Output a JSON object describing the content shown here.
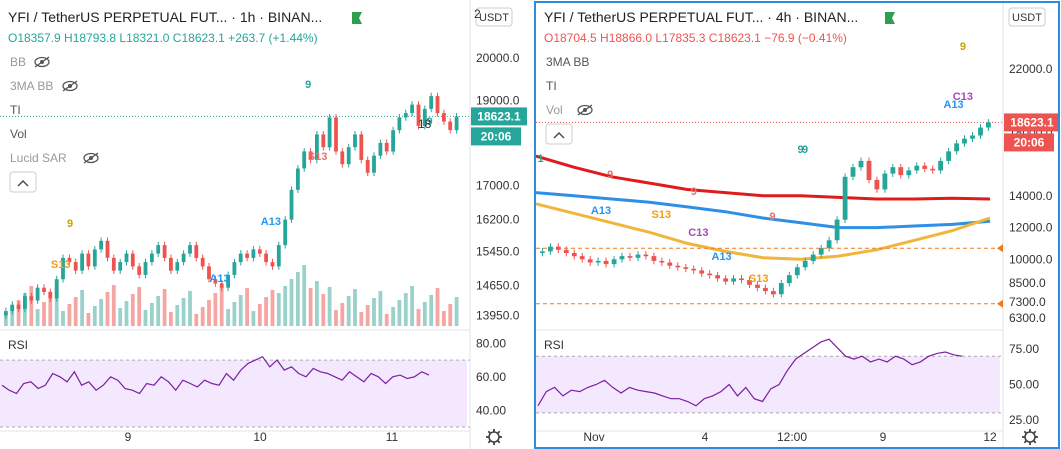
{
  "colors": {
    "up": "#26a69a",
    "down": "#ef5350",
    "upVol": "#9ad2cb",
    "downVol": "#f5a6a3",
    "accent": "#2a8de0",
    "rsiBand": "#f3e8fd",
    "rsiLine": "#7b1fa2"
  },
  "panels": [
    {
      "id": "left",
      "title": "YFI / TetherUS PERPETUAL FUT...",
      "interval": "1h",
      "exchange": "BINAN...",
      "ohlc": {
        "o": "O18357.9",
        "h": "H18793.8",
        "l": "L18321.0",
        "c": "C18623.1",
        "chg": "+263.7 (+1.44%)"
      },
      "ohlc_color": "#26a69a",
      "indicators": [
        {
          "label": "BB",
          "hidden": true
        },
        {
          "label": "3MA BB",
          "hidden": true
        },
        {
          "label": "TI",
          "hidden": false
        },
        {
          "label": "Vol",
          "hidden": false
        },
        {
          "label": "Lucid SAR",
          "hidden": true
        }
      ],
      "price_labels": [
        "20000.0",
        "19000.0",
        "17000.0",
        "16200.0",
        "15450.0",
        "14650.0",
        "13950.0"
      ],
      "partial_top_label": "2",
      "partial_label": "18",
      "current_price": "18623.1",
      "countdown": "20:06",
      "currency": "USDT",
      "rsi_label": "RSI",
      "rsi_ticks": [
        "80.00",
        "60.00",
        "40.00"
      ],
      "time_labels": [
        "9",
        "10",
        "11"
      ],
      "markers": [
        {
          "text": "9",
          "color": "#26a69a"
        },
        {
          "text": "9",
          "color": "#26a69a"
        },
        {
          "text": "9",
          "color": "#c8a400"
        },
        {
          "text": "S13",
          "color": "#f39c12"
        },
        {
          "text": "A13",
          "color": "#2196f3"
        },
        {
          "text": "A13",
          "color": "#2196f3"
        },
        {
          "text": "S13",
          "color": "#e57373"
        }
      ]
    },
    {
      "id": "right",
      "title": "YFI / TetherUS PERPETUAL FUT...",
      "interval": "4h",
      "exchange": "BINAN...",
      "ohlc": {
        "o": "O18704.5",
        "h": "H18866.0",
        "l": "L17835.3",
        "c": "C18623.1",
        "chg": "−76.9 (−0.41%)"
      },
      "ohlc_color": "#ef5350",
      "indicators": [
        {
          "label": "3MA BB",
          "hidden": false
        },
        {
          "label": "TI",
          "hidden": false
        },
        {
          "label": "Vol",
          "hidden": true
        }
      ],
      "price_labels": [
        "22000.0",
        "18000.0",
        "14000.0",
        "12000.0",
        "10000.0",
        "8500.0",
        "7300.0",
        "6300.0"
      ],
      "current_price": "18623.1",
      "countdown": "20:06",
      "currency": "USDT",
      "rsi_label": "RSI",
      "rsi_ticks": [
        "75.00",
        "50.00",
        "25.00"
      ],
      "time_labels": [
        "Nov",
        "4",
        "12:00",
        "9",
        "12"
      ],
      "markers": [
        {
          "text": "9",
          "color": "#c8a400"
        },
        {
          "text": "9",
          "color": "#26a69a"
        },
        {
          "text": "1",
          "color": "#26a69a"
        },
        {
          "text": "9",
          "color": "#e57373"
        },
        {
          "text": "A13",
          "color": "#2196f3"
        },
        {
          "text": "9",
          "color": "#e57373"
        },
        {
          "text": "S13",
          "color": "#f39c12"
        },
        {
          "text": "9",
          "color": "#e57373"
        },
        {
          "text": "C13",
          "color": "#ab47bc"
        },
        {
          "text": "A13",
          "color": "#2196f3"
        },
        {
          "text": "S13",
          "color": "#f39c12"
        },
        {
          "text": "9",
          "color": "#26a69a"
        },
        {
          "text": "C13",
          "color": "#ab47bc"
        },
        {
          "text": "A13",
          "color": "#2196f3"
        }
      ]
    }
  ],
  "chart_data": [
    {
      "type": "line",
      "panel": "left",
      "title": "YFI / TetherUS PERPETUAL FUT... 1h BINAN...",
      "close_approx": [
        14050,
        14200,
        14100,
        14400,
        14300,
        14600,
        14500,
        14350,
        14800,
        15300,
        15200,
        15000,
        15400,
        15100,
        15500,
        15700,
        15300,
        15000,
        15200,
        15400,
        15100,
        14900,
        15200,
        15400,
        15600,
        15300,
        15000,
        15200,
        15400,
        15600,
        15300,
        15100,
        14800,
        14700,
        14600,
        14900,
        15200,
        15400,
        15300,
        15500,
        15400,
        15200,
        15100,
        15600,
        16200,
        16900,
        17400,
        17800,
        17600,
        18200,
        17900,
        18600,
        17800,
        17500,
        17900,
        18200,
        17600,
        17300,
        17700,
        18000,
        17800,
        18300,
        18600,
        18700,
        18900,
        18400,
        18800,
        19100,
        18700,
        18500,
        18300,
        18623
      ],
      "ylim": [
        13700,
        20300
      ],
      "rsi_approx": [
        55,
        52,
        50,
        56,
        57,
        53,
        55,
        62,
        60,
        57,
        63,
        55,
        57,
        52,
        55,
        60,
        58,
        53,
        52,
        50,
        56,
        55,
        60,
        57,
        52,
        58,
        56,
        54,
        58,
        56,
        55,
        62,
        58,
        64,
        68,
        70,
        72,
        66,
        70,
        64,
        66,
        62,
        60,
        65,
        63,
        62,
        60,
        58,
        63,
        60,
        57,
        62,
        60,
        56,
        60,
        61,
        59,
        60,
        63,
        61
      ],
      "rsi_ylim": [
        30,
        85
      ]
    },
    {
      "type": "line",
      "panel": "right",
      "title": "YFI / TetherUS PERPETUAL FUT... 4h BINAN...",
      "close_approx": [
        10500,
        10800,
        10600,
        10400,
        10200,
        10000,
        9800,
        9900,
        9700,
        10000,
        10200,
        10100,
        10300,
        10200,
        9900,
        9800,
        9600,
        9500,
        9400,
        9300,
        9100,
        9000,
        8800,
        8600,
        8800,
        8700,
        8400,
        8200,
        8000,
        7800,
        8500,
        9000,
        9500,
        9900,
        10300,
        10700,
        11200,
        12500,
        15200,
        15800,
        16200,
        15000,
        14400,
        15400,
        15800,
        15300,
        15600,
        15900,
        15700,
        15600,
        16200,
        16800,
        17300,
        17600,
        17800,
        18300,
        18623
      ],
      "ylim": [
        5800,
        23500
      ],
      "series": [
        {
          "name": "red",
          "values_approx": [
            16500,
            15800,
            15200,
            14800,
            14400,
            14200,
            14000,
            14000,
            13900,
            13800,
            13800,
            13850,
            13800
          ]
        },
        {
          "name": "blue",
          "values_approx": [
            14200,
            14000,
            13800,
            13600,
            13300,
            13000,
            12600,
            12300,
            12000,
            12000,
            12100,
            12200,
            12400
          ]
        },
        {
          "name": "orange",
          "values_approx": [
            13500,
            12900,
            12300,
            11700,
            11000,
            10500,
            10100,
            10000,
            10200,
            10600,
            11200,
            11800,
            12600
          ]
        }
      ],
      "rsi_approx": [
        35,
        45,
        48,
        42,
        46,
        45,
        48,
        50,
        53,
        48,
        44,
        48,
        46,
        45,
        44,
        42,
        40,
        40,
        38,
        35,
        40,
        42,
        45,
        50,
        42,
        48,
        40,
        38,
        47,
        50,
        60,
        68,
        72,
        76,
        80,
        82,
        76,
        70,
        68,
        70,
        66,
        68,
        66,
        70,
        68,
        64,
        66,
        70,
        72,
        73,
        71,
        70
      ],
      "rsi_ylim": [
        20,
        85
      ]
    }
  ]
}
